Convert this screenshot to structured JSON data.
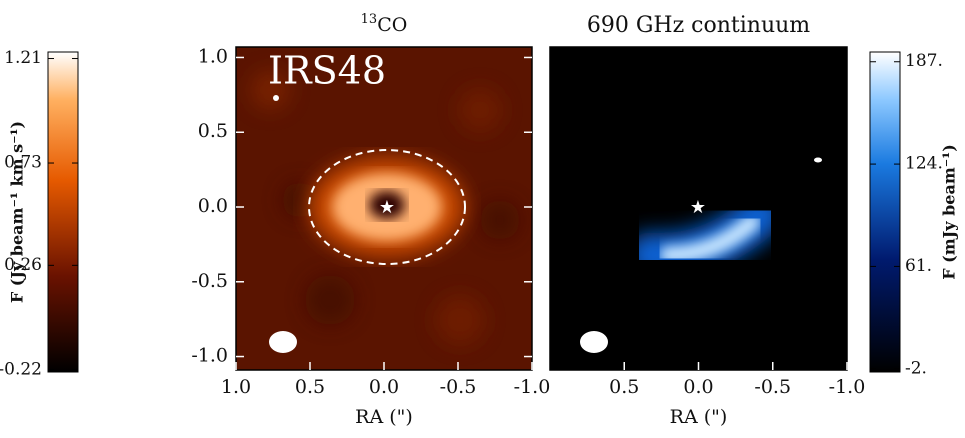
{
  "chart_data": [
    {
      "type": "image",
      "title_sup": "13",
      "title": "CO",
      "annotation": "IRS48",
      "xlabel": "RA (\")",
      "xlim": [
        1.0,
        -1.0
      ],
      "xticks": [
        {
          "value": 1.0,
          "label": "1.0"
        },
        {
          "value": 0.5,
          "label": "0.5"
        },
        {
          "value": 0.0,
          "label": "0.0"
        },
        {
          "value": -0.5,
          "label": "-0.5"
        },
        {
          "value": -1.0,
          "label": "-1.0"
        }
      ],
      "ylim": [
        -1.09,
        1.07
      ],
      "yticks": [
        {
          "value": 1.0,
          "label": "1.0"
        },
        {
          "value": 0.5,
          "label": "0.5"
        },
        {
          "value": 0.0,
          "label": "0.0"
        },
        {
          "value": -0.5,
          "label": "-0.5"
        },
        {
          "value": -1.0,
          "label": "-1.0"
        }
      ],
      "colorbar": {
        "label": "F (Jy beam⁻¹ km s⁻¹)",
        "lim": [
          -0.23,
          1.24
        ],
        "ticks": [
          1.21,
          0.73,
          0.26,
          -0.22
        ]
      }
    },
    {
      "type": "image",
      "title": "690 GHz continuum",
      "xlabel": "RA (\")",
      "xlim": [
        1.0,
        -1.0
      ],
      "xticks": [
        {
          "value": 0.5,
          "label": "0.5"
        },
        {
          "value": 0.0,
          "label": "0.0"
        },
        {
          "value": -0.5,
          "label": "-0.5"
        },
        {
          "value": -1.0,
          "label": "-1.0"
        }
      ],
      "ylim": [
        -1.09,
        1.07
      ],
      "colorbar": {
        "label": "F (mJy beam⁻¹)",
        "lim": [
          -4,
          193
        ],
        "ticks": [
          {
            "value": 187,
            "label": "187."
          },
          {
            "value": 124,
            "label": "124."
          },
          {
            "value": 61,
            "label": "61."
          },
          {
            "value": -2,
            "label": "-2."
          }
        ]
      }
    }
  ]
}
